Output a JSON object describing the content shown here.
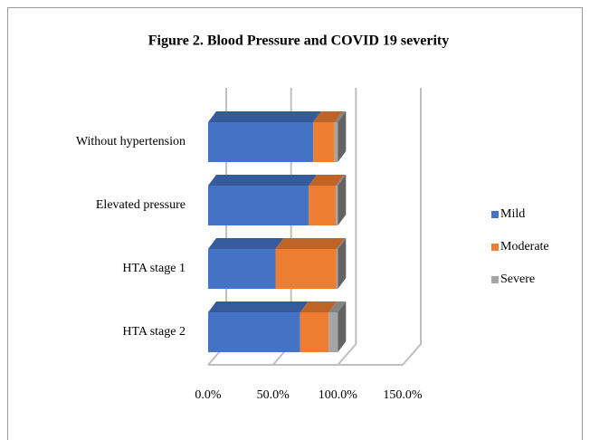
{
  "chart_data": {
    "type": "bar3d_stacked_horizontal",
    "title": "Figure 2. Blood Pressure and COVID 19 severity",
    "categories": [
      "Without hypertension",
      "Elevated pressure",
      "HTA stage 1",
      "HTA stage 2"
    ],
    "series": [
      {
        "name": "Mild",
        "color": "#4472c4",
        "values": [
          81,
          77.5,
          52,
          71
        ]
      },
      {
        "name": "Moderate",
        "color": "#ed7d31",
        "values": [
          16.5,
          21,
          47,
          22
        ]
      },
      {
        "name": "Severe",
        "color": "#a5a5a5",
        "values": [
          2.5,
          1.5,
          1,
          7
        ]
      }
    ],
    "xlim": [
      0,
      150
    ],
    "xticks": [
      {
        "value": 0,
        "label": "0.0%"
      },
      {
        "value": 50,
        "label": "50.0%"
      },
      {
        "value": 100,
        "label": "100.0%"
      },
      {
        "value": 150,
        "label": "150.0%"
      }
    ],
    "legend": "right"
  }
}
